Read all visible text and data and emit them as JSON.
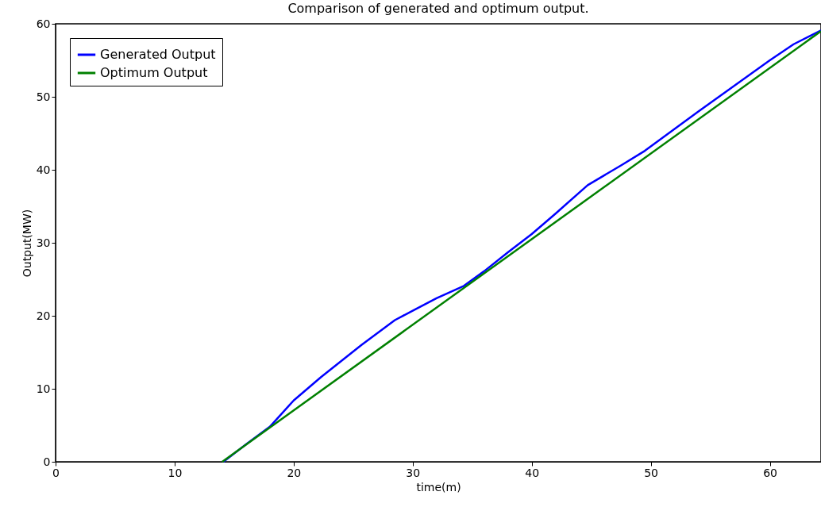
{
  "chart_data": {
    "type": "line",
    "title": "Comparison of generated and optimum output.",
    "xlabel": "time(m)",
    "ylabel": "Output(MW)",
    "xlim": [
      0,
      64.3
    ],
    "ylim": [
      0,
      60
    ],
    "xticks": [
      0,
      10,
      20,
      30,
      40,
      50,
      60
    ],
    "yticks": [
      0,
      10,
      20,
      30,
      40,
      50,
      60
    ],
    "grid": false,
    "legend": "top left",
    "line_style": "solid",
    "series": [
      {
        "name": "Generated Output",
        "color": "#0000ff",
        "x": [
          14.1,
          16,
          18,
          20,
          22.3,
          25.7,
          28.5,
          30,
          32,
          34.3,
          36,
          38,
          40,
          42,
          44.7,
          47.5,
          49.5,
          52,
          54,
          57,
          60,
          62,
          64.3
        ],
        "values": [
          0,
          2.4,
          4.8,
          8.4,
          11.6,
          16,
          19.4,
          20.7,
          22.4,
          24.1,
          26.1,
          28.7,
          31.2,
          34,
          37.9,
          40.6,
          42.6,
          45.6,
          48,
          51.5,
          55,
          57.2,
          59.1
        ]
      },
      {
        "name": "Optimum Output",
        "color": "#008000",
        "x": [
          14,
          64.3
        ],
        "values": [
          0,
          59
        ]
      }
    ]
  }
}
